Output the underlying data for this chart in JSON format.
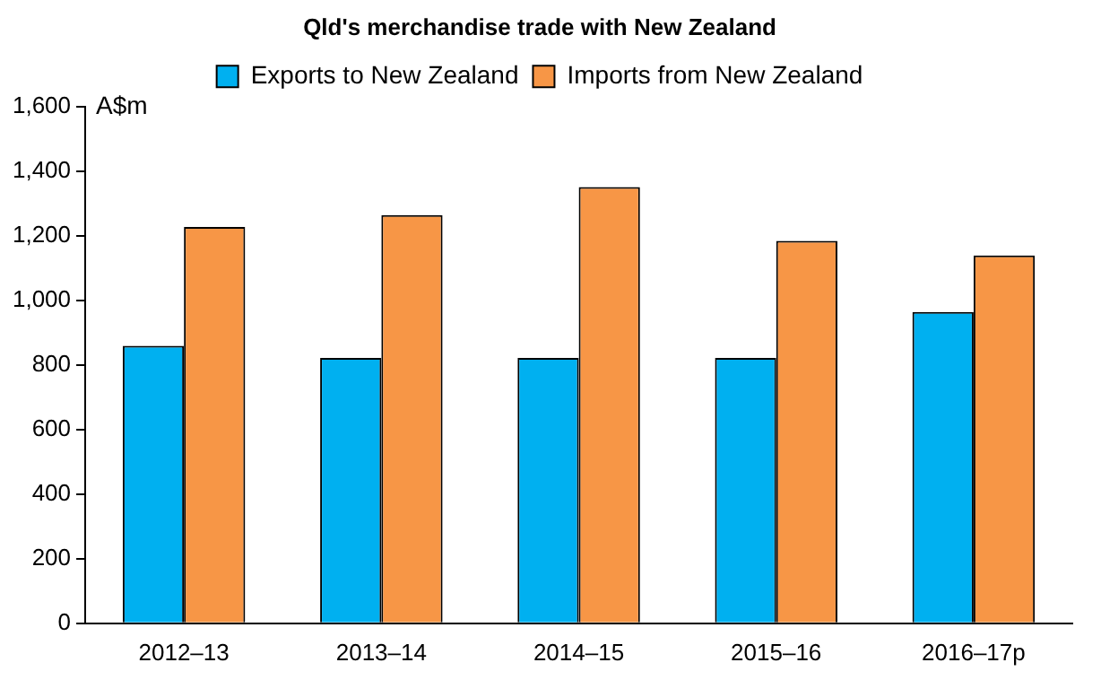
{
  "chart_data": {
    "type": "bar",
    "title": "Qld's merchandise trade with New Zealand",
    "ylabel": "A$m",
    "categories": [
      "2012–13",
      "2013–14",
      "2014–15",
      "2015–16",
      "2016–17p"
    ],
    "series": [
      {
        "name": "Exports to New Zealand",
        "color": "#00b0f0",
        "values": [
          860,
          822,
          822,
          822,
          965
        ]
      },
      {
        "name": "Imports from New Zealand",
        "color": "#f79646",
        "values": [
          1228,
          1265,
          1352,
          1185,
          1140
        ]
      }
    ],
    "ylim": [
      0,
      1600
    ],
    "yticks": [
      0,
      {
        "value": 200,
        "label": "200"
      },
      {
        "value": 400,
        "label": "400"
      },
      {
        "value": 600,
        "label": "600"
      },
      {
        "value": 800,
        "label": "800"
      },
      {
        "value": 1000,
        "label": "1,000"
      },
      {
        "value": 1200,
        "label": "1,200"
      },
      {
        "value": 1400,
        "label": "1,400"
      },
      {
        "value": 1600,
        "label": "1,600"
      }
    ],
    "grid": false,
    "legend": "top"
  }
}
